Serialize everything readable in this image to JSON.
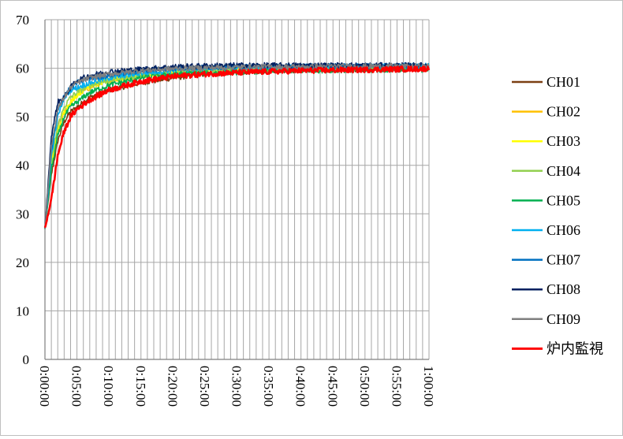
{
  "chart_data": {
    "type": "line",
    "title": "",
    "xlabel": "",
    "ylabel": "",
    "ylim": [
      0,
      70
    ],
    "yticks": [
      0,
      10,
      20,
      30,
      40,
      50,
      60,
      70
    ],
    "xlim_minutes": [
      0,
      60
    ],
    "xticks": [
      "0:00:00",
      "0:05:00",
      "0:10:00",
      "0:15:00",
      "0:20:00",
      "0:25:00",
      "0:30:00",
      "0:35:00",
      "0:40:00",
      "0:45:00",
      "0:50:00",
      "0:55:00",
      "1:00:00"
    ],
    "grid": true,
    "legend_position": "right",
    "x": [
      "0:00:00",
      "0:01:00",
      "0:02:00",
      "0:03:00",
      "0:04:00",
      "0:05:00",
      "0:07:00",
      "0:10:00",
      "0:15:00",
      "0:20:00",
      "0:25:00",
      "0:30:00",
      "0:35:00",
      "0:40:00",
      "0:45:00",
      "0:50:00",
      "0:55:00",
      "1:00:00"
    ],
    "series": [
      {
        "name": "CH01",
        "color": "#7b3f12",
        "values": [
          27,
          38,
          45,
          49,
          51,
          52,
          54,
          55.5,
          57,
          58,
          58.8,
          59.2,
          59.5,
          59.6,
          59.7,
          59.8,
          59.8,
          59.9
        ]
      },
      {
        "name": "CH02",
        "color": "#ffc000",
        "values": [
          27,
          40,
          47,
          51,
          53,
          54.5,
          56,
          57.5,
          58.5,
          59.2,
          59.6,
          59.8,
          60,
          60,
          60.1,
          60.1,
          60.2,
          60.2
        ]
      },
      {
        "name": "CH03",
        "color": "#ffff00",
        "values": [
          27,
          40,
          47,
          51,
          53,
          54.5,
          56.5,
          57.5,
          58.5,
          59.2,
          59.6,
          59.8,
          60,
          60,
          60.1,
          60.1,
          60.2,
          60.2
        ]
      },
      {
        "name": "CH04",
        "color": "#92d050",
        "values": [
          27,
          41,
          48,
          52,
          54,
          55,
          56.5,
          57.5,
          58.5,
          59,
          59.5,
          59.8,
          60,
          60,
          60.1,
          60.1,
          60.2,
          60.2
        ]
      },
      {
        "name": "CH05",
        "color": "#00b050",
        "values": [
          27,
          39,
          46,
          50,
          52,
          53,
          55,
          56.5,
          58,
          58.8,
          59,
          59.2,
          59.4,
          59.5,
          59.6,
          59.6,
          59.7,
          59.7
        ]
      },
      {
        "name": "CH06",
        "color": "#00b0f0",
        "values": [
          27,
          42,
          50,
          54,
          55.5,
          56,
          57,
          58,
          59,
          59.6,
          60,
          60.2,
          60.3,
          60.3,
          60.4,
          60.4,
          60.5,
          60.5
        ]
      },
      {
        "name": "CH07",
        "color": "#0070c0",
        "values": [
          27,
          43,
          51,
          54.5,
          56,
          57,
          58,
          58.5,
          59.5,
          60,
          60.2,
          60.3,
          60.3,
          60.3,
          60.4,
          60.4,
          60.4,
          60.4
        ]
      },
      {
        "name": "CH08",
        "color": "#002060",
        "values": [
          27,
          46,
          53,
          54,
          56,
          57.5,
          58.5,
          59.3,
          59.8,
          60.3,
          60.5,
          60.6,
          60.6,
          60.6,
          60.6,
          60.6,
          60.6,
          60.6
        ]
      },
      {
        "name": "CH09",
        "color": "#7f7f7f",
        "values": [
          27,
          44,
          51.5,
          54,
          56,
          57,
          58,
          58.8,
          59.5,
          59.9,
          60.1,
          60.2,
          60.3,
          60.3,
          60.4,
          60.4,
          60.4,
          60.4
        ]
      },
      {
        "name": "炉内監視",
        "color": "#ff0000",
        "values": [
          27,
          33,
          42,
          47,
          50,
          51.5,
          53.5,
          55.5,
          57.3,
          58.3,
          58.8,
          59.1,
          59.3,
          59.5,
          59.6,
          59.7,
          59.8,
          59.9
        ]
      }
    ]
  }
}
